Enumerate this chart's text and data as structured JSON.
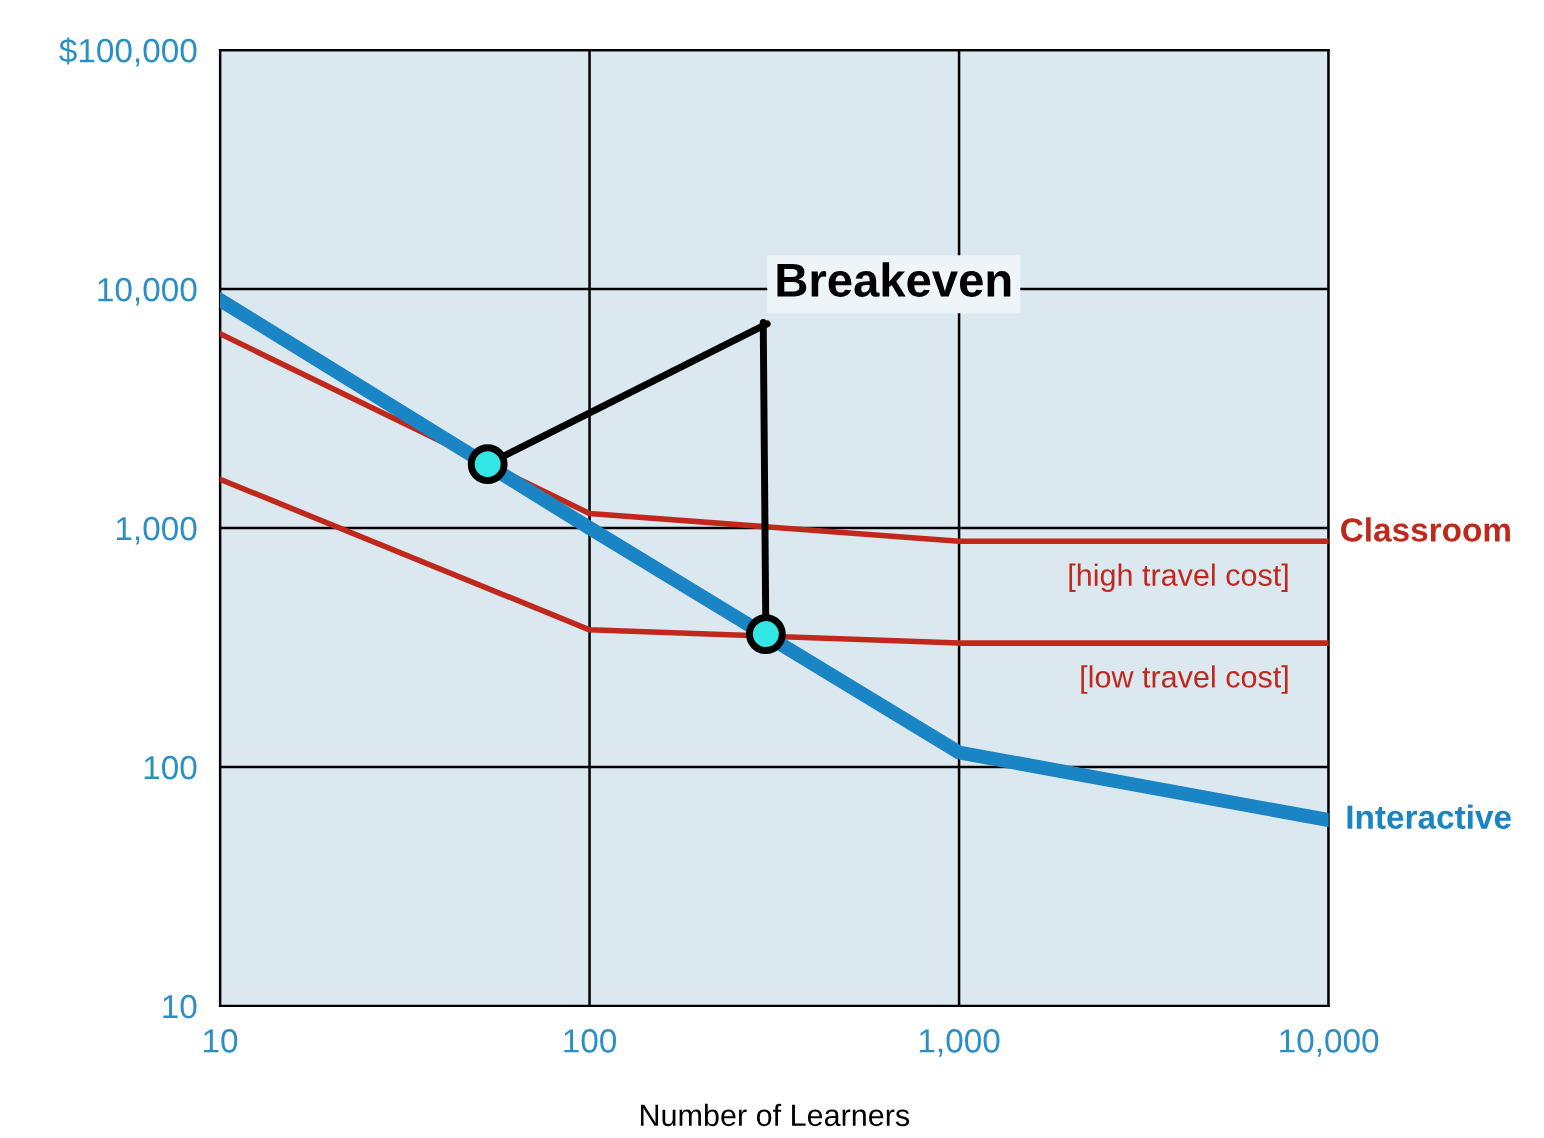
{
  "chart_data": {
    "type": "line",
    "xlabel": "Number of Learners",
    "log": "xy",
    "xlim": [
      10,
      10000
    ],
    "xticks": [
      {
        "value": 10,
        "label": "10"
      },
      {
        "value": 100,
        "label": "100"
      },
      {
        "value": 1000,
        "label": "1,000"
      },
      {
        "value": 10000,
        "label": "10,000"
      }
    ],
    "ylim": [
      10,
      100000
    ],
    "yticks": [
      {
        "value": 10,
        "label": "10"
      },
      {
        "value": 100,
        "label": "100"
      },
      {
        "value": 1000,
        "label": "1,000"
      },
      {
        "value": 10000,
        "label": "10,000"
      },
      {
        "value": 100000,
        "label": "$100,000"
      }
    ],
    "grid": true,
    "legend": false,
    "series": [
      {
        "name": "Interactive",
        "color": "#1a85c4",
        "x": [
          10,
          100,
          1000,
          10000
        ],
        "values": [
          9000,
          1000,
          115,
          60
        ]
      },
      {
        "name": "[high travel cost]",
        "color": "#c0281c",
        "x": [
          10,
          100,
          1000,
          10000
        ],
        "values": [
          6500,
          1150,
          880,
          880
        ]
      },
      {
        "name": "[low travel cost]",
        "color": "#c0281c",
        "x": [
          10,
          100,
          1000,
          10000
        ],
        "values": [
          1600,
          375,
          330,
          330
        ]
      },
      {
        "type": "scatter",
        "color": "#33e6e6",
        "marker": "circle",
        "x": [
          53,
          300
        ],
        "values": [
          1850,
          360
        ]
      }
    ],
    "annotations": [
      {
        "text": "Breakeven",
        "x": 53,
        "y": 1850
      },
      "Classroom"
    ]
  }
}
